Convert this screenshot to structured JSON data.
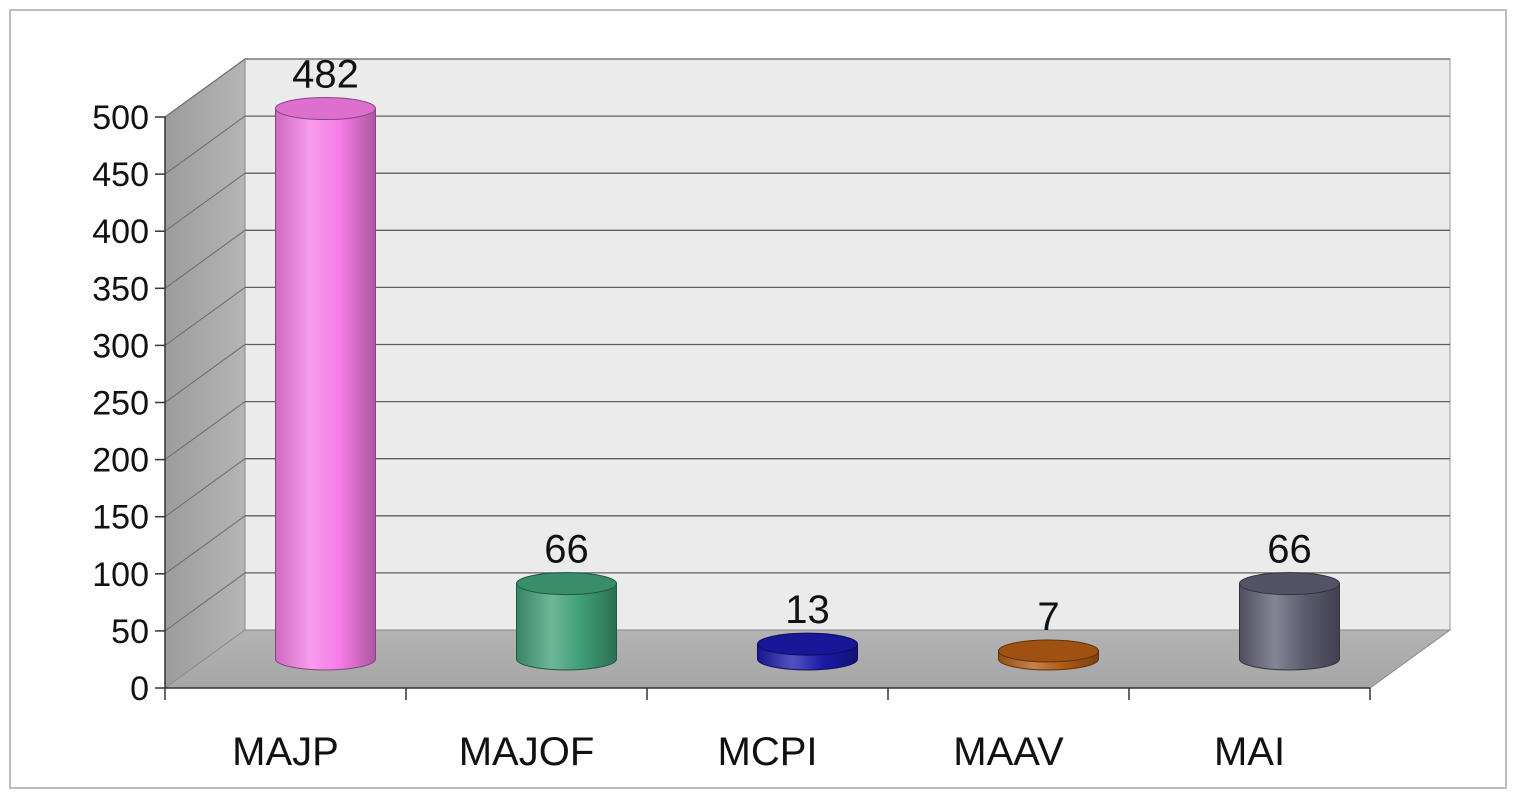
{
  "chart_data": {
    "type": "bar",
    "style": "3d-cylinder",
    "categories": [
      "MAJP",
      "MAJOF",
      "MCPI",
      "MAAV",
      "MAI"
    ],
    "values": [
      482,
      66,
      13,
      7,
      66
    ],
    "data_labels": [
      "482",
      "66",
      "13",
      "7",
      "66"
    ],
    "bar_colors": [
      "#f57be6",
      "#3f9e76",
      "#1a1aa8",
      "#b05a12",
      "#5c5c70"
    ],
    "ylim": [
      0,
      500
    ],
    "yticks": [
      0,
      50,
      100,
      150,
      200,
      250,
      300,
      350,
      400,
      450,
      500
    ],
    "ytick_labels": [
      "0",
      "50",
      "100",
      "150",
      "200",
      "250",
      "300",
      "350",
      "400",
      "450",
      "500"
    ],
    "title": "",
    "xlabel": "",
    "ylabel": "",
    "grid": true,
    "legend": "none"
  }
}
